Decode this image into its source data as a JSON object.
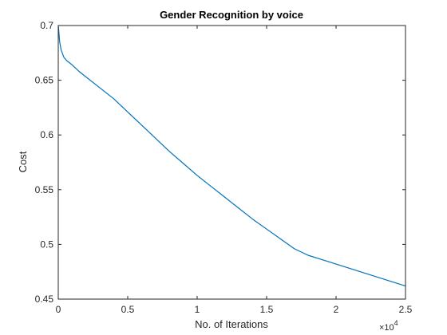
{
  "chart_data": {
    "type": "line",
    "title": "Gender Recognition by voice",
    "xlabel": "No. of Iterations",
    "ylabel": "Cost",
    "x_exponent_label": "×10",
    "x_exponent": "4",
    "xlim": [
      0,
      25000
    ],
    "ylim": [
      0.45,
      0.7
    ],
    "xticks": [
      0,
      5000,
      10000,
      15000,
      20000,
      25000
    ],
    "xtick_labels": [
      "0",
      "0.5",
      "1",
      "1.5",
      "2",
      "2.5"
    ],
    "yticks": [
      0.45,
      0.5,
      0.55,
      0.6,
      0.65,
      0.7
    ],
    "ytick_labels": [
      "0.45",
      "0.5",
      "0.55",
      "0.6",
      "0.65",
      "0.7"
    ],
    "grid": false,
    "series": [
      {
        "color": "#0072BD",
        "x": [
          1,
          50,
          100,
          200,
          400,
          600,
          800,
          1000,
          1500,
          2000,
          3000,
          4000,
          5000,
          6000,
          7000,
          8000,
          9000,
          10000,
          11000,
          12000,
          13000,
          14000,
          15000,
          16000,
          17000,
          18000,
          19000,
          20000,
          21000,
          22000,
          23000,
          24000,
          25000
        ],
        "y": [
          0.7,
          0.693,
          0.685,
          0.678,
          0.671,
          0.668,
          0.666,
          0.664,
          0.658,
          0.653,
          0.643,
          0.633,
          0.621,
          0.609,
          0.597,
          0.585,
          0.574,
          0.563,
          0.553,
          0.543,
          0.533,
          0.523,
          0.514,
          0.505,
          0.496,
          0.49,
          0.486,
          0.482,
          0.478,
          0.474,
          0.47,
          0.466,
          0.462
        ]
      }
    ]
  }
}
